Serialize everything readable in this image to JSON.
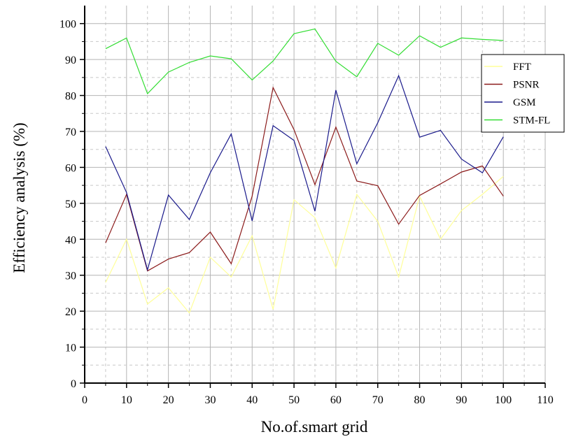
{
  "chart_data": {
    "type": "line",
    "title": "",
    "xlabel": "No.of.smart grid",
    "ylabel": "Efficiency analysis (%)",
    "xlim": [
      0,
      110
    ],
    "ylim": [
      0,
      105
    ],
    "x_ticks": [
      0,
      10,
      20,
      30,
      40,
      50,
      60,
      70,
      80,
      90,
      100,
      110
    ],
    "y_ticks": [
      0,
      10,
      20,
      30,
      40,
      50,
      60,
      70,
      80,
      90,
      100
    ],
    "grid": true,
    "legend_position": "right",
    "x": [
      5,
      10,
      15,
      20,
      25,
      30,
      35,
      40,
      45,
      50,
      55,
      60,
      65,
      70,
      75,
      80,
      85,
      90,
      95,
      100
    ],
    "series": [
      {
        "name": "FFT",
        "color": "#ffff99",
        "values": [
          28,
          40,
          22,
          26.5,
          19.5,
          35,
          29.5,
          41,
          20.5,
          51,
          46,
          32,
          52.5,
          45,
          29.5,
          52,
          40,
          48,
          52.5,
          57.5
        ]
      },
      {
        "name": "PSNR",
        "color": "#8b1a1a",
        "values": [
          39,
          52.5,
          31.2,
          34.5,
          36.3,
          42,
          33.2,
          52,
          82.2,
          70.5,
          55.2,
          71.2,
          56.2,
          54.9,
          44.2,
          52.2,
          55.4,
          58.7,
          60.4,
          52
        ]
      },
      {
        "name": "GSM",
        "color": "#1a1a8b",
        "values": [
          65.8,
          53,
          31.5,
          52.3,
          45.5,
          58.5,
          69.3,
          45.1,
          71.6,
          67.5,
          47.8,
          81.5,
          61,
          72.4,
          85.5,
          68.4,
          70.3,
          62.3,
          58.5,
          68.5
        ]
      },
      {
        "name": "STM-FL",
        "color": "#33dd33",
        "values": [
          93,
          96,
          80.5,
          86.5,
          89.2,
          91,
          90.2,
          84.3,
          89.6,
          97.2,
          98.5,
          89.5,
          85.2,
          94.5,
          91.2,
          96.6,
          93.4,
          96,
          95.6,
          95.3
        ]
      }
    ]
  }
}
